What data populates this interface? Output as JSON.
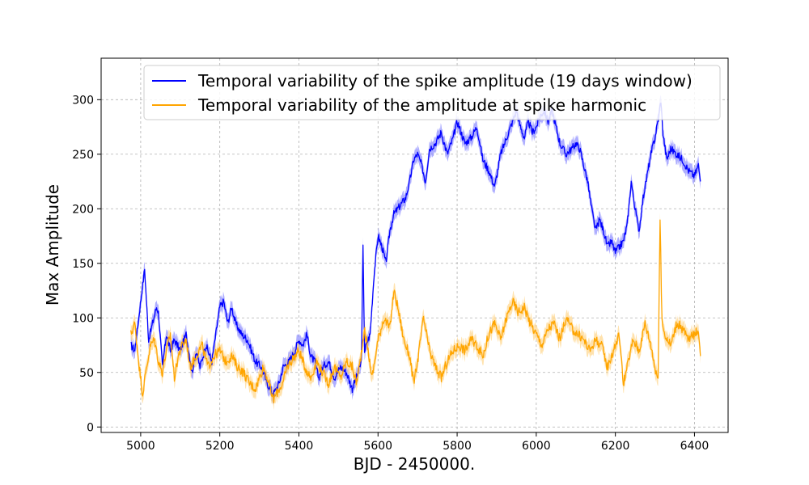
{
  "chart_data": {
    "type": "line",
    "title": "",
    "xlabel": "BJD - 2450000.",
    "ylabel": "Max Amplitude",
    "xlim": [
      4900,
      6485
    ],
    "ylim": [
      -5,
      338
    ],
    "xticks": [
      5000,
      5200,
      5400,
      5600,
      5800,
      6000,
      6200,
      6400
    ],
    "yticks": [
      0,
      50,
      100,
      150,
      200,
      250,
      300
    ],
    "grid": true,
    "legend_position": "top-right",
    "series": [
      {
        "name": "Temporal variability of the spike amplitude (19 days window)",
        "color": "#0000ff",
        "band_color": "#8c8cff",
        "x": [
          4975,
          4985,
          4995,
          5005,
          5010,
          5020,
          5030,
          5040,
          5045,
          5055,
          5065,
          5075,
          5085,
          5100,
          5115,
          5130,
          5140,
          5150,
          5165,
          5180,
          5190,
          5200,
          5210,
          5220,
          5230,
          5240,
          5255,
          5270,
          5290,
          5305,
          5320,
          5335,
          5350,
          5360,
          5375,
          5390,
          5400,
          5410,
          5420,
          5430,
          5440,
          5450,
          5460,
          5475,
          5490,
          5505,
          5520,
          5535,
          5550,
          5558,
          5562,
          5566,
          5570,
          5580,
          5590,
          5600,
          5610,
          5620,
          5630,
          5640,
          5650,
          5660,
          5670,
          5680,
          5690,
          5700,
          5710,
          5720,
          5730,
          5745,
          5760,
          5775,
          5790,
          5800,
          5810,
          5820,
          5835,
          5850,
          5865,
          5880,
          5895,
          5910,
          5925,
          5940,
          5950,
          5960,
          5970,
          5980,
          5990,
          6000,
          6010,
          6020,
          6030,
          6040,
          6050,
          6060,
          6075,
          6090,
          6100,
          6110,
          6120,
          6130,
          6140,
          6150,
          6160,
          6170,
          6180,
          6190,
          6200,
          6210,
          6220,
          6230,
          6240,
          6250,
          6260,
          6270,
          6280,
          6290,
          6300,
          6310,
          6315,
          6320,
          6330,
          6340,
          6355,
          6370,
          6385,
          6400,
          6410,
          6415
        ],
        "y": [
          75,
          70,
          100,
          130,
          145,
          80,
          95,
          110,
          105,
          55,
          85,
          70,
          80,
          70,
          85,
          50,
          70,
          55,
          75,
          60,
          85,
          110,
          115,
          95,
          110,
          95,
          85,
          80,
          60,
          55,
          40,
          30,
          40,
          55,
          60,
          70,
          80,
          75,
          85,
          65,
          60,
          45,
          55,
          60,
          45,
          55,
          50,
          35,
          50,
          60,
          165,
          70,
          75,
          85,
          140,
          175,
          165,
          150,
          180,
          195,
          200,
          205,
          210,
          225,
          245,
          250,
          240,
          225,
          255,
          260,
          270,
          250,
          265,
          280,
          270,
          260,
          265,
          275,
          245,
          235,
          220,
          250,
          265,
          280,
          290,
          275,
          265,
          280,
          270,
          275,
          285,
          290,
          280,
          290,
          275,
          260,
          250,
          255,
          260,
          255,
          240,
          225,
          200,
          180,
          190,
          180,
          165,
          170,
          160,
          165,
          170,
          185,
          225,
          200,
          180,
          210,
          230,
          250,
          265,
          285,
          300,
          270,
          245,
          255,
          250,
          245,
          235,
          230,
          240,
          225
        ]
      },
      {
        "name": "Temporal variability of the amplitude at spike harmonic",
        "color": "#ffa500",
        "band_color": "#ffd68a",
        "x": [
          4975,
          4985,
          4995,
          5005,
          5015,
          5025,
          5035,
          5045,
          5055,
          5065,
          5075,
          5085,
          5095,
          5105,
          5115,
          5125,
          5140,
          5155,
          5170,
          5185,
          5200,
          5215,
          5230,
          5245,
          5260,
          5275,
          5290,
          5300,
          5310,
          5320,
          5335,
          5350,
          5360,
          5370,
          5380,
          5390,
          5400,
          5415,
          5430,
          5445,
          5460,
          5475,
          5490,
          5505,
          5520,
          5535,
          5545,
          5555,
          5565,
          5575,
          5585,
          5600,
          5615,
          5630,
          5640,
          5650,
          5665,
          5680,
          5690,
          5700,
          5715,
          5730,
          5745,
          5760,
          5775,
          5790,
          5805,
          5820,
          5835,
          5850,
          5865,
          5880,
          5895,
          5910,
          5925,
          5940,
          5955,
          5970,
          5985,
          6000,
          6015,
          6030,
          6045,
          6060,
          6075,
          6090,
          6105,
          6120,
          6135,
          6150,
          6165,
          6180,
          6195,
          6210,
          6220,
          6230,
          6245,
          6260,
          6275,
          6290,
          6300,
          6308,
          6313,
          6318,
          6325,
          6340,
          6355,
          6370,
          6385,
          6400,
          6410,
          6415
        ],
        "y": [
          85,
          95,
          60,
          30,
          55,
          75,
          80,
          60,
          50,
          70,
          85,
          45,
          65,
          75,
          80,
          55,
          65,
          75,
          55,
          65,
          70,
          60,
          65,
          55,
          50,
          40,
          35,
          45,
          55,
          45,
          25,
          35,
          40,
          55,
          60,
          65,
          70,
          55,
          45,
          60,
          50,
          40,
          55,
          45,
          60,
          55,
          40,
          60,
          90,
          70,
          45,
          80,
          100,
          90,
          125,
          110,
          80,
          65,
          40,
          60,
          100,
          70,
          55,
          45,
          60,
          70,
          75,
          70,
          80,
          75,
          65,
          85,
          95,
          80,
          100,
          115,
          105,
          110,
          95,
          85,
          75,
          90,
          95,
          80,
          100,
          90,
          85,
          80,
          70,
          80,
          75,
          55,
          70,
          85,
          40,
          55,
          80,
          70,
          95,
          75,
          55,
          45,
          190,
          95,
          85,
          75,
          95,
          90,
          80,
          85,
          90,
          65
        ]
      }
    ]
  }
}
